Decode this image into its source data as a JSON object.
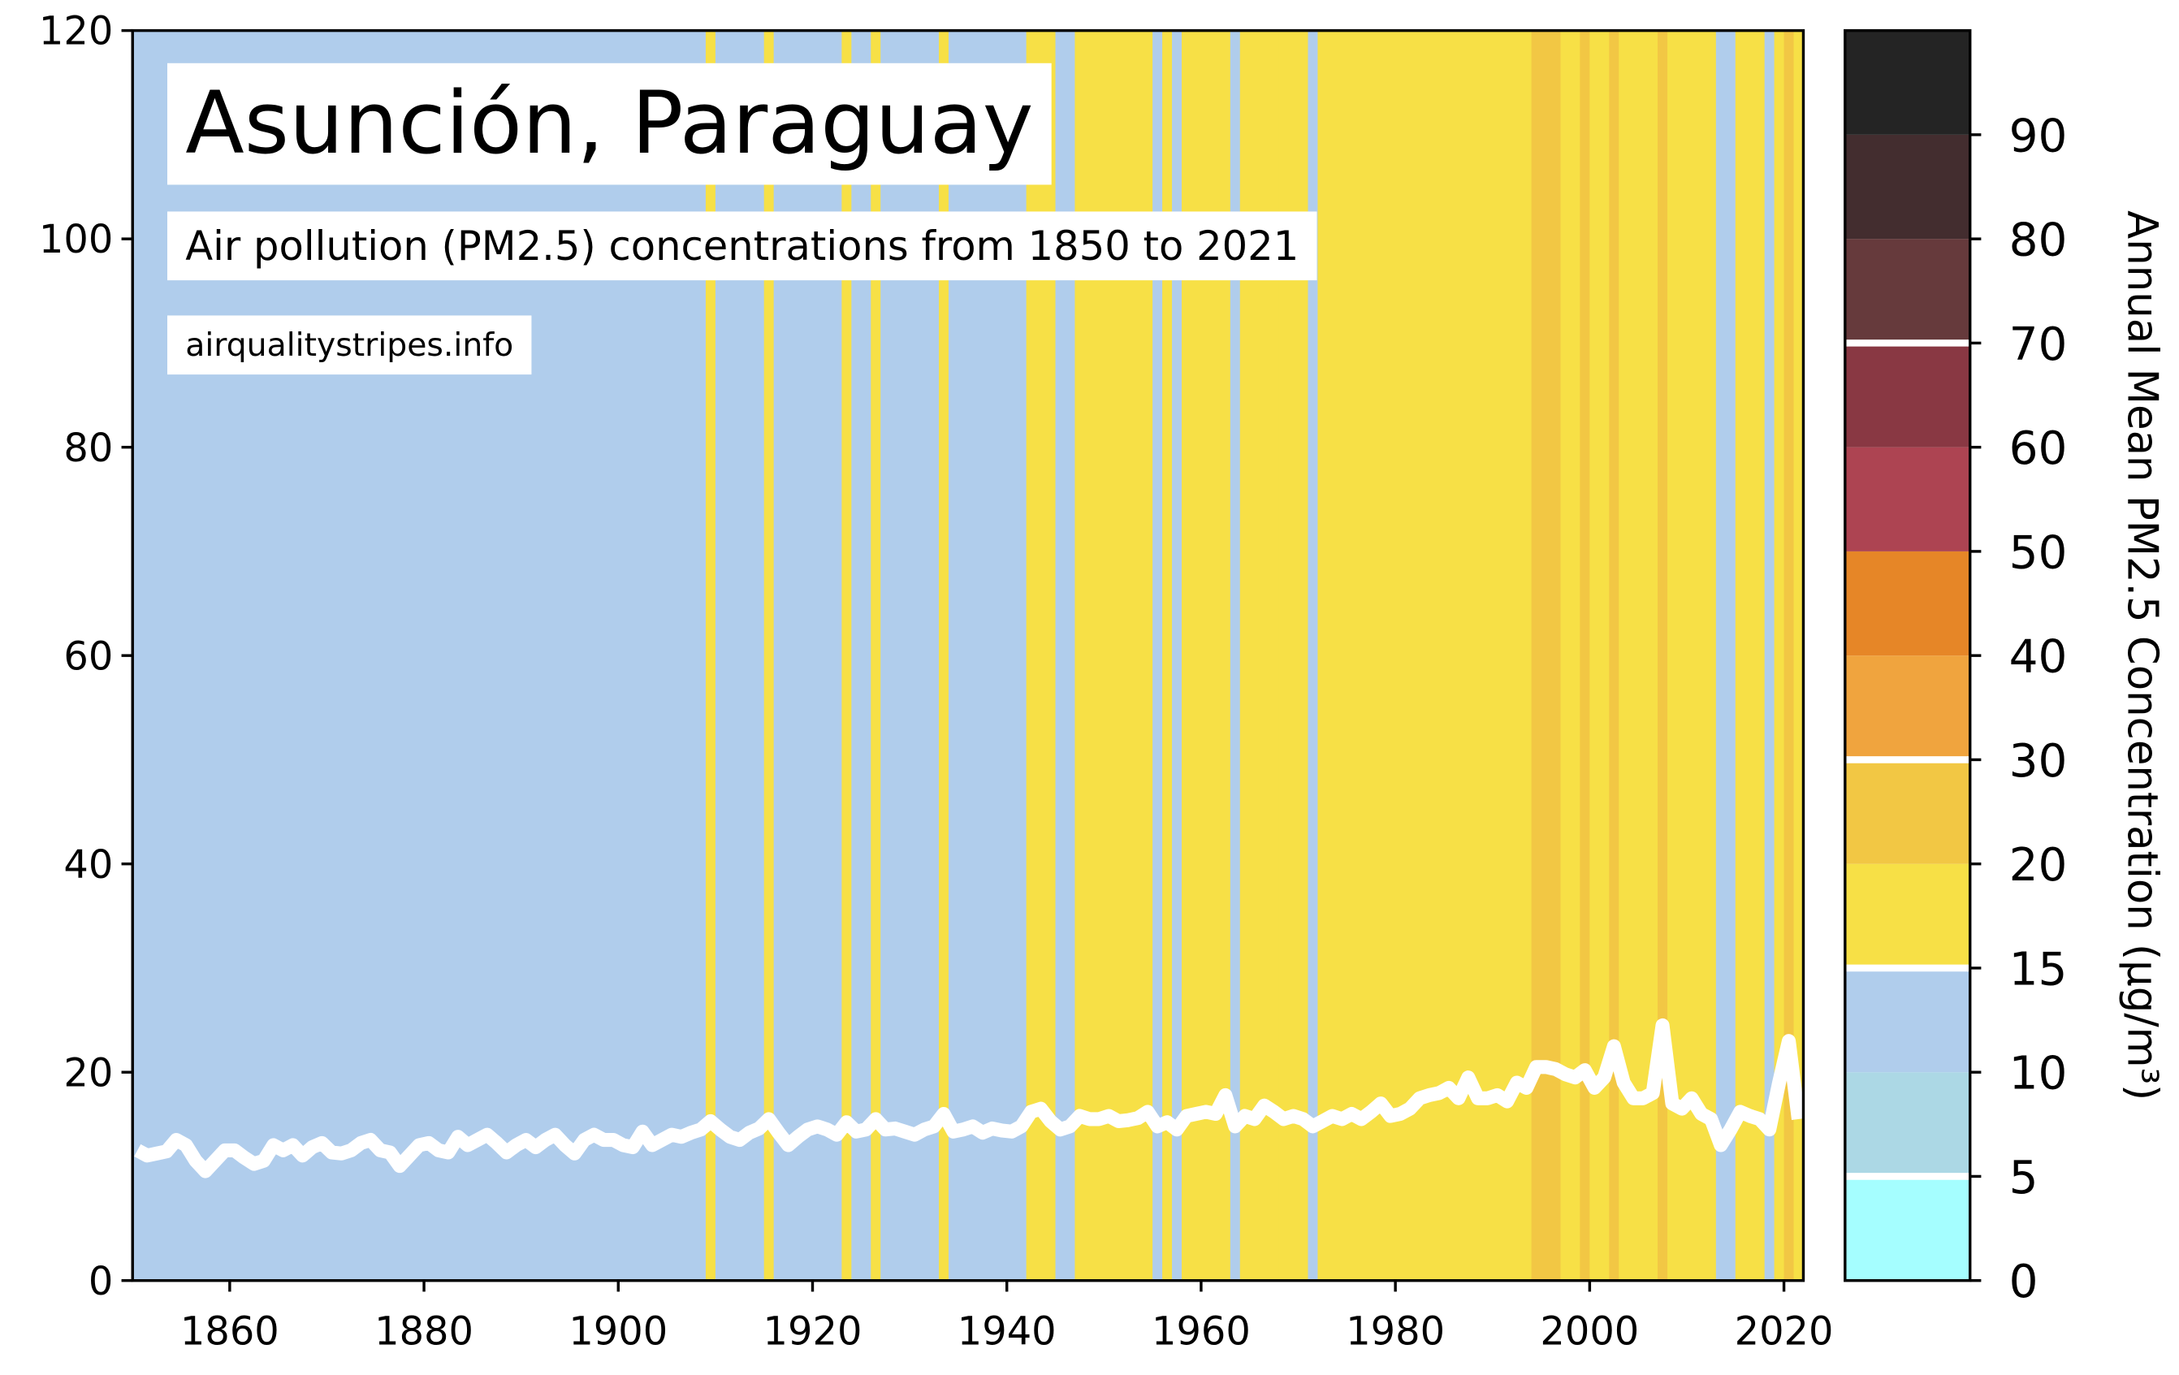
{
  "chart_data": {
    "type": "stripes",
    "title": "Asunción, Paraguay",
    "subtitle": "Air pollution (PM2.5) concentrations from 1850 to 2021",
    "source": "airqualitystripes.info",
    "x": [
      1850,
      1851,
      1852,
      1853,
      1854,
      1855,
      1856,
      1857,
      1858,
      1859,
      1860,
      1861,
      1862,
      1863,
      1864,
      1865,
      1866,
      1867,
      1868,
      1869,
      1870,
      1871,
      1872,
      1873,
      1874,
      1875,
      1876,
      1877,
      1878,
      1879,
      1880,
      1881,
      1882,
      1883,
      1884,
      1885,
      1886,
      1887,
      1888,
      1889,
      1890,
      1891,
      1892,
      1893,
      1894,
      1895,
      1896,
      1897,
      1898,
      1899,
      1900,
      1901,
      1902,
      1903,
      1904,
      1905,
      1906,
      1907,
      1908,
      1909,
      1910,
      1911,
      1912,
      1913,
      1914,
      1915,
      1916,
      1917,
      1918,
      1919,
      1920,
      1921,
      1922,
      1923,
      1924,
      1925,
      1926,
      1927,
      1928,
      1929,
      1930,
      1931,
      1932,
      1933,
      1934,
      1935,
      1936,
      1937,
      1938,
      1939,
      1940,
      1941,
      1942,
      1943,
      1944,
      1945,
      1946,
      1947,
      1948,
      1949,
      1950,
      1951,
      1952,
      1953,
      1954,
      1955,
      1956,
      1957,
      1958,
      1959,
      1960,
      1961,
      1962,
      1963,
      1964,
      1965,
      1966,
      1967,
      1968,
      1969,
      1970,
      1971,
      1972,
      1973,
      1974,
      1975,
      1976,
      1977,
      1978,
      1979,
      1980,
      1981,
      1982,
      1983,
      1984,
      1985,
      1986,
      1987,
      1988,
      1989,
      1990,
      1991,
      1992,
      1993,
      1994,
      1995,
      1996,
      1997,
      1998,
      1999,
      2000,
      2001,
      2002,
      2003,
      2004,
      2005,
      2006,
      2007,
      2008,
      2009,
      2010,
      2011,
      2012,
      2013,
      2014,
      2015,
      2016,
      2017,
      2018,
      2019,
      2020,
      2021
    ],
    "series": [
      {
        "color": "#ffffff",
        "values": [
          12.5,
          12,
          12.2,
          12.4,
          13.5,
          13,
          11.5,
          10.5,
          11.5,
          12.5,
          12.5,
          11.8,
          11.2,
          11.5,
          13,
          12.5,
          13,
          12,
          12.8,
          13.2,
          12.3,
          12.2,
          12.5,
          13.2,
          13.5,
          12.5,
          12.3,
          11,
          12,
          13,
          13.2,
          12.5,
          12.3,
          13.8,
          13,
          13.5,
          14,
          13.2,
          12.3,
          13,
          13.5,
          12.8,
          13.5,
          14,
          13,
          12.2,
          13.5,
          14,
          13.5,
          13.5,
          13,
          12.8,
          14.3,
          13,
          13.5,
          14,
          13.8,
          14.2,
          14.5,
          15.3,
          14.5,
          13.8,
          13.5,
          14.2,
          14.6,
          15.5,
          14.2,
          13,
          13.8,
          14.5,
          14.8,
          14.5,
          14,
          15.2,
          14.3,
          14.5,
          15.5,
          14.5,
          14.6,
          14.3,
          14,
          14.5,
          14.8,
          16,
          14.3,
          14.5,
          14.8,
          14.2,
          14.6,
          14.4,
          14.3,
          14.8,
          16.2,
          16.5,
          15.3,
          14.5,
          14.8,
          15.8,
          15.5,
          15.5,
          15.8,
          15.3,
          15.4,
          15.6,
          16.2,
          14.8,
          15.2,
          14.5,
          15.8,
          16,
          16.2,
          16,
          17.8,
          14.8,
          15.8,
          15.5,
          16.8,
          16.2,
          15.5,
          15.8,
          15.5,
          14.8,
          15.3,
          15.8,
          15.5,
          16,
          15.5,
          16.2,
          17,
          15.8,
          16,
          16.5,
          17.5,
          17.8,
          18,
          18.5,
          17.5,
          19.5,
          17.5,
          17.5,
          17.8,
          17.2,
          19,
          18.5,
          20.5,
          20.5,
          20.3,
          19.8,
          19.5,
          20.2,
          18.5,
          19.5,
          22.5,
          19,
          17.5,
          17.5,
          18,
          24.5,
          17,
          16.5,
          17.5,
          16,
          15.5,
          13,
          14.5,
          16.2,
          15.8,
          15.5,
          14.5,
          19,
          23,
          15.5
        ]
      }
    ],
    "xlim": [
      1850,
      2022
    ],
    "xticks": [
      1860,
      1880,
      1900,
      1920,
      1940,
      1960,
      1980,
      2000,
      2020
    ],
    "ylim": [
      0,
      120
    ],
    "yticks": [
      0,
      20,
      40,
      60,
      80,
      100,
      120
    ],
    "colorbar": {
      "label": "Annual Mean PM2.5 Concentration (µg/m³)",
      "ticks": [
        0,
        5,
        10,
        15,
        20,
        30,
        40,
        50,
        60,
        70,
        80,
        90
      ],
      "colors": [
        "#a5feff",
        "#acd8e5",
        "#b0cdec",
        "#f7e046",
        "#f2c744",
        "#f0a43e",
        "#e68627",
        "#ad4452",
        "#893843",
        "#663a3c",
        "#432d2f",
        "#242424"
      ],
      "lines": [
        5,
        15,
        30,
        70
      ]
    }
  }
}
